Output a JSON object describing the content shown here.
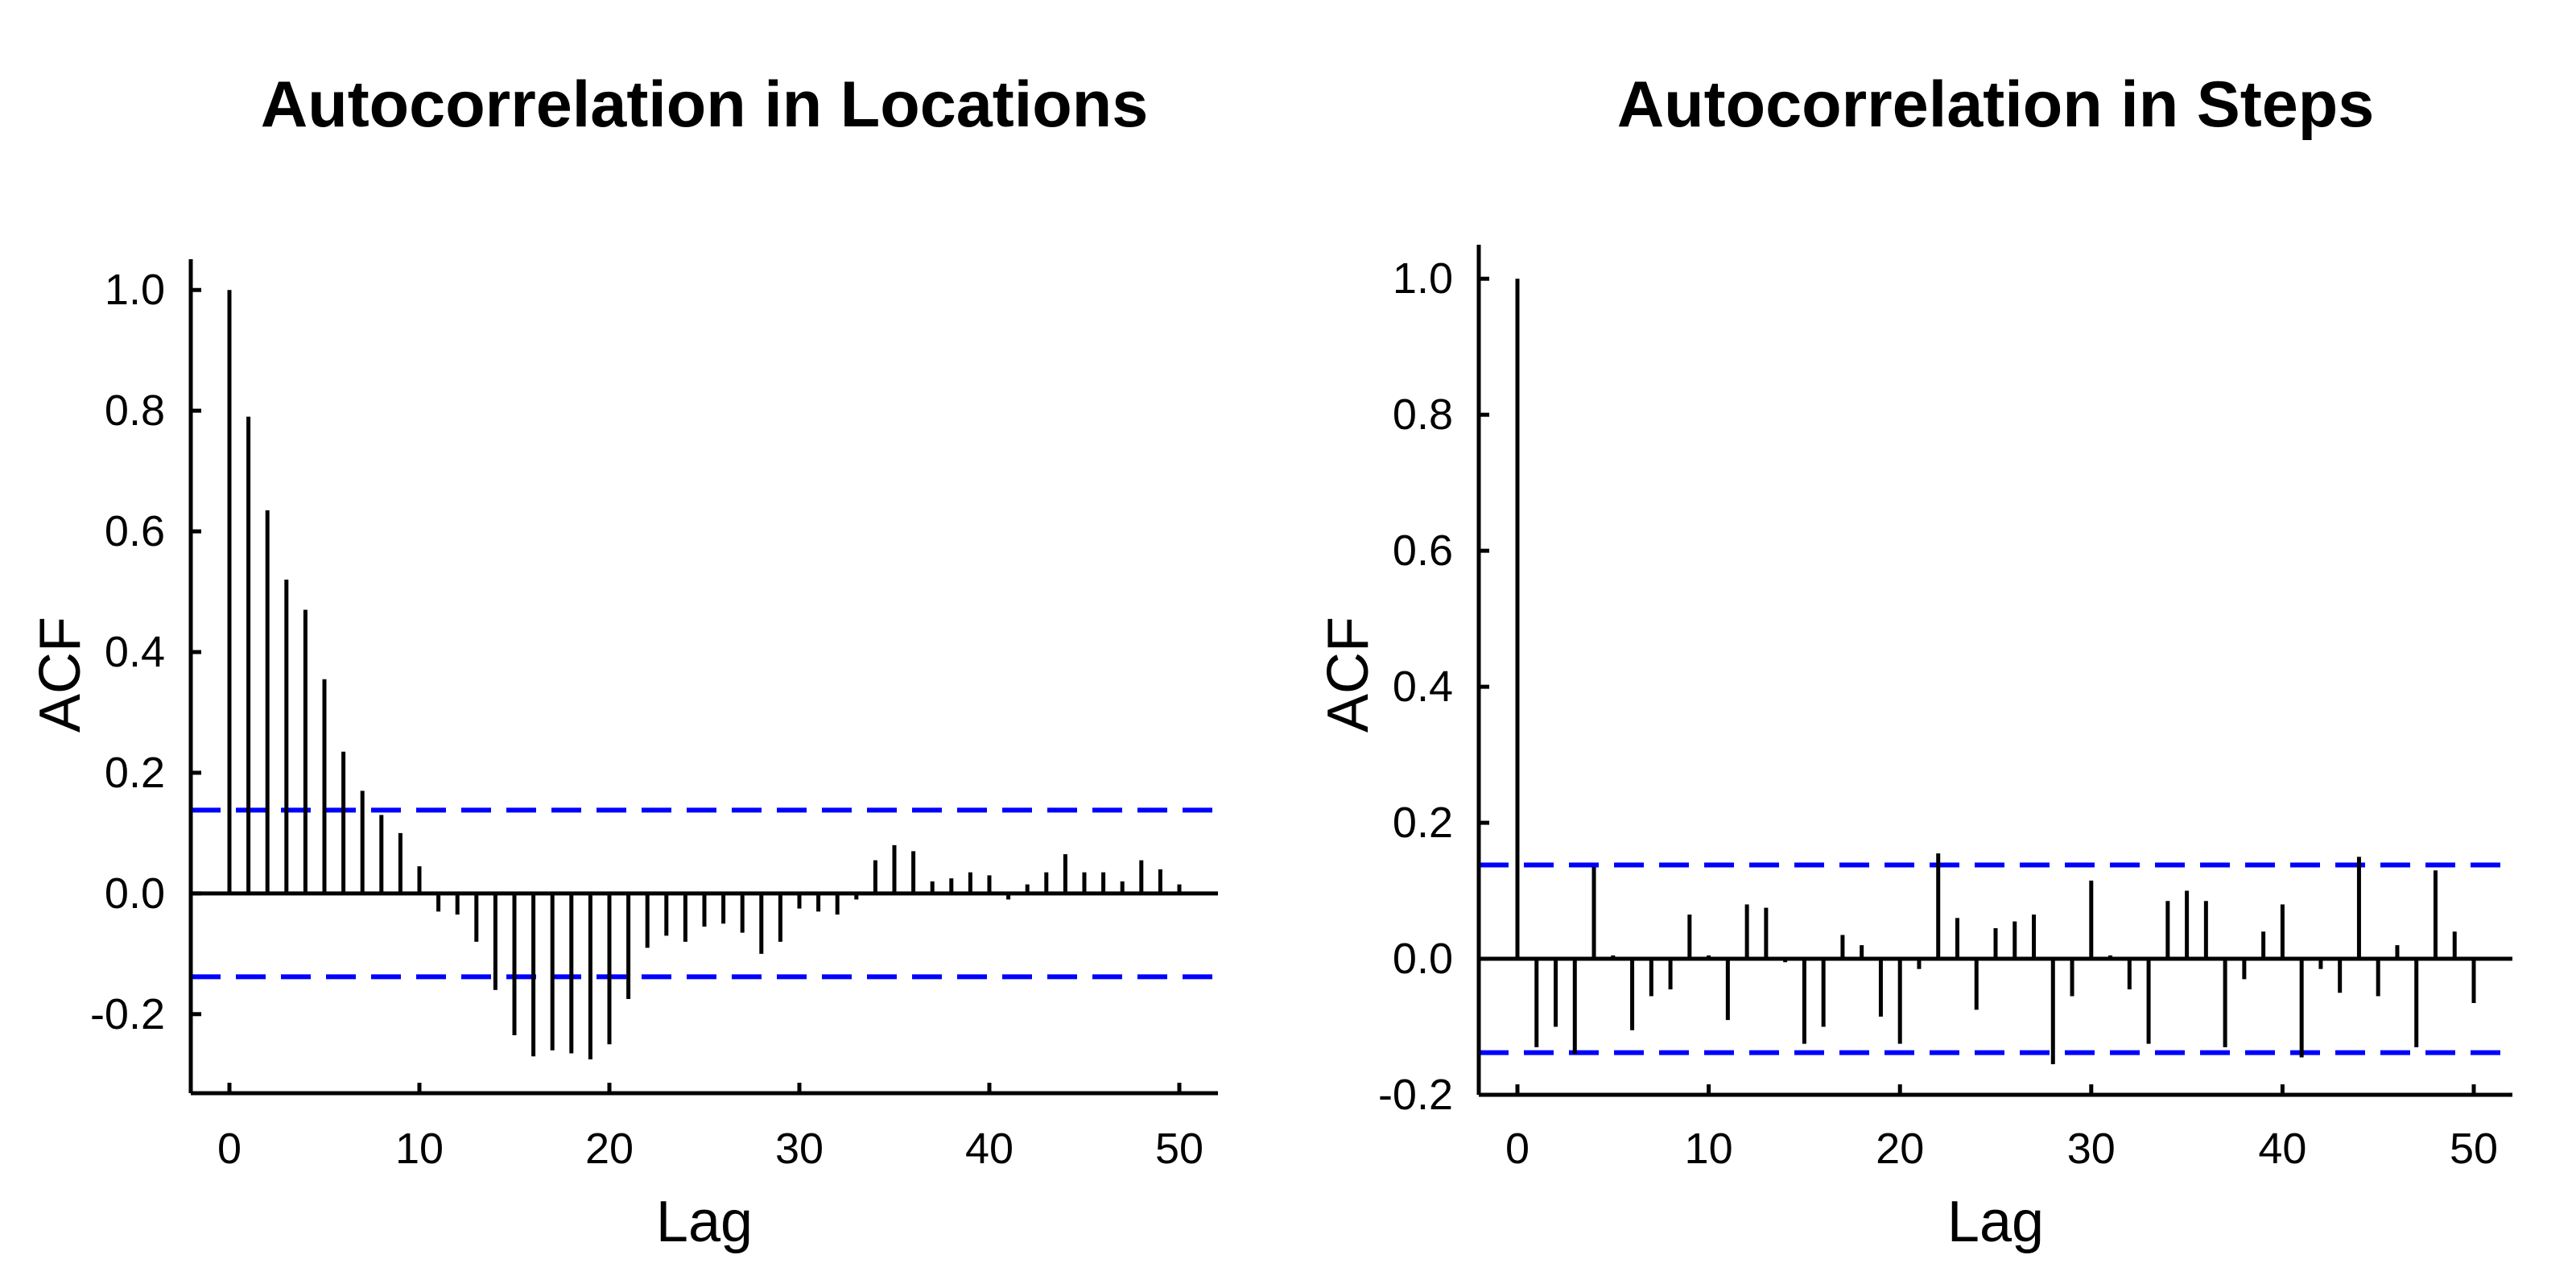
{
  "figure": {
    "background": "#FFFFFF",
    "text_color": "#000000",
    "confidence_band_color": "#0000FF"
  },
  "chart_data": [
    {
      "type": "stem",
      "title": "Autocorrelation in Locations",
      "xlabel": "Lag",
      "ylabel": "ACF",
      "xticks": [
        0,
        10,
        20,
        30,
        40,
        50
      ],
      "xtick_labels": [
        "0",
        "10",
        "20",
        "30",
        "40",
        "50"
      ],
      "yticks": [
        1.0,
        0.8,
        0.6,
        0.4,
        0.2,
        0.0,
        -0.2
      ],
      "ytick_labels": [
        "1.0",
        "0.8",
        "0.6",
        "0.4",
        "0.2",
        "0.0",
        "-0.2"
      ],
      "xlim": [
        -2,
        52
      ],
      "ylim": [
        -0.331,
        1.051
      ],
      "grid": false,
      "legend": false,
      "conf_band": 0.138,
      "conf_band_style": "dashed",
      "conf_band_color": "#0000FF",
      "bar_color": "#000000",
      "lag_start": 0,
      "lag_step": 1,
      "acf": [
        1.0,
        0.79,
        0.635,
        0.52,
        0.47,
        0.355,
        0.235,
        0.17,
        0.13,
        0.1,
        0.045,
        -0.03,
        -0.035,
        -0.08,
        -0.16,
        -0.235,
        -0.27,
        -0.26,
        -0.265,
        -0.275,
        -0.25,
        -0.175,
        -0.09,
        -0.07,
        -0.08,
        -0.055,
        -0.05,
        -0.065,
        -0.1,
        -0.08,
        -0.025,
        -0.03,
        -0.035,
        -0.01,
        0.055,
        0.08,
        0.07,
        0.02,
        0.025,
        0.035,
        0.03,
        -0.01,
        0.015,
        0.035,
        0.065,
        0.035,
        0.035,
        0.02,
        0.055,
        0.04,
        0.015
      ]
    },
    {
      "type": "stem",
      "title": "Autocorrelation in Steps",
      "xlabel": "Lag",
      "ylabel": "ACF",
      "xticks": [
        0,
        10,
        20,
        30,
        40,
        50
      ],
      "xtick_labels": [
        "0",
        "10",
        "20",
        "30",
        "40",
        "50"
      ],
      "yticks": [
        1.0,
        0.8,
        0.6,
        0.4,
        0.2,
        0.0,
        -0.2
      ],
      "ytick_labels": [
        "1.0",
        "0.8",
        "0.6",
        "0.4",
        "0.2",
        "0.0",
        "-0.2"
      ],
      "xlim": [
        -2,
        52
      ],
      "ylim": [
        -0.2,
        1.05
      ],
      "grid": false,
      "legend": false,
      "conf_band": 0.138,
      "conf_band_style": "dashed",
      "conf_band_color": "#0000FF",
      "bar_color": "#000000",
      "lag_start": 0,
      "lag_step": 1,
      "acf": [
        1.0,
        -0.13,
        -0.1,
        -0.14,
        0.135,
        0.005,
        -0.105,
        -0.055,
        -0.045,
        0.065,
        0.005,
        -0.09,
        0.08,
        0.075,
        -0.005,
        -0.125,
        -0.1,
        0.035,
        0.02,
        -0.085,
        -0.125,
        -0.015,
        0.155,
        0.06,
        -0.075,
        0.045,
        0.055,
        0.065,
        -0.155,
        -0.055,
        0.115,
        0.005,
        -0.045,
        -0.125,
        0.085,
        0.1,
        0.085,
        -0.13,
        -0.03,
        0.04,
        0.08,
        -0.145,
        -0.015,
        -0.05,
        0.15,
        -0.055,
        0.02,
        -0.13,
        0.13,
        0.04,
        -0.065
      ]
    }
  ]
}
